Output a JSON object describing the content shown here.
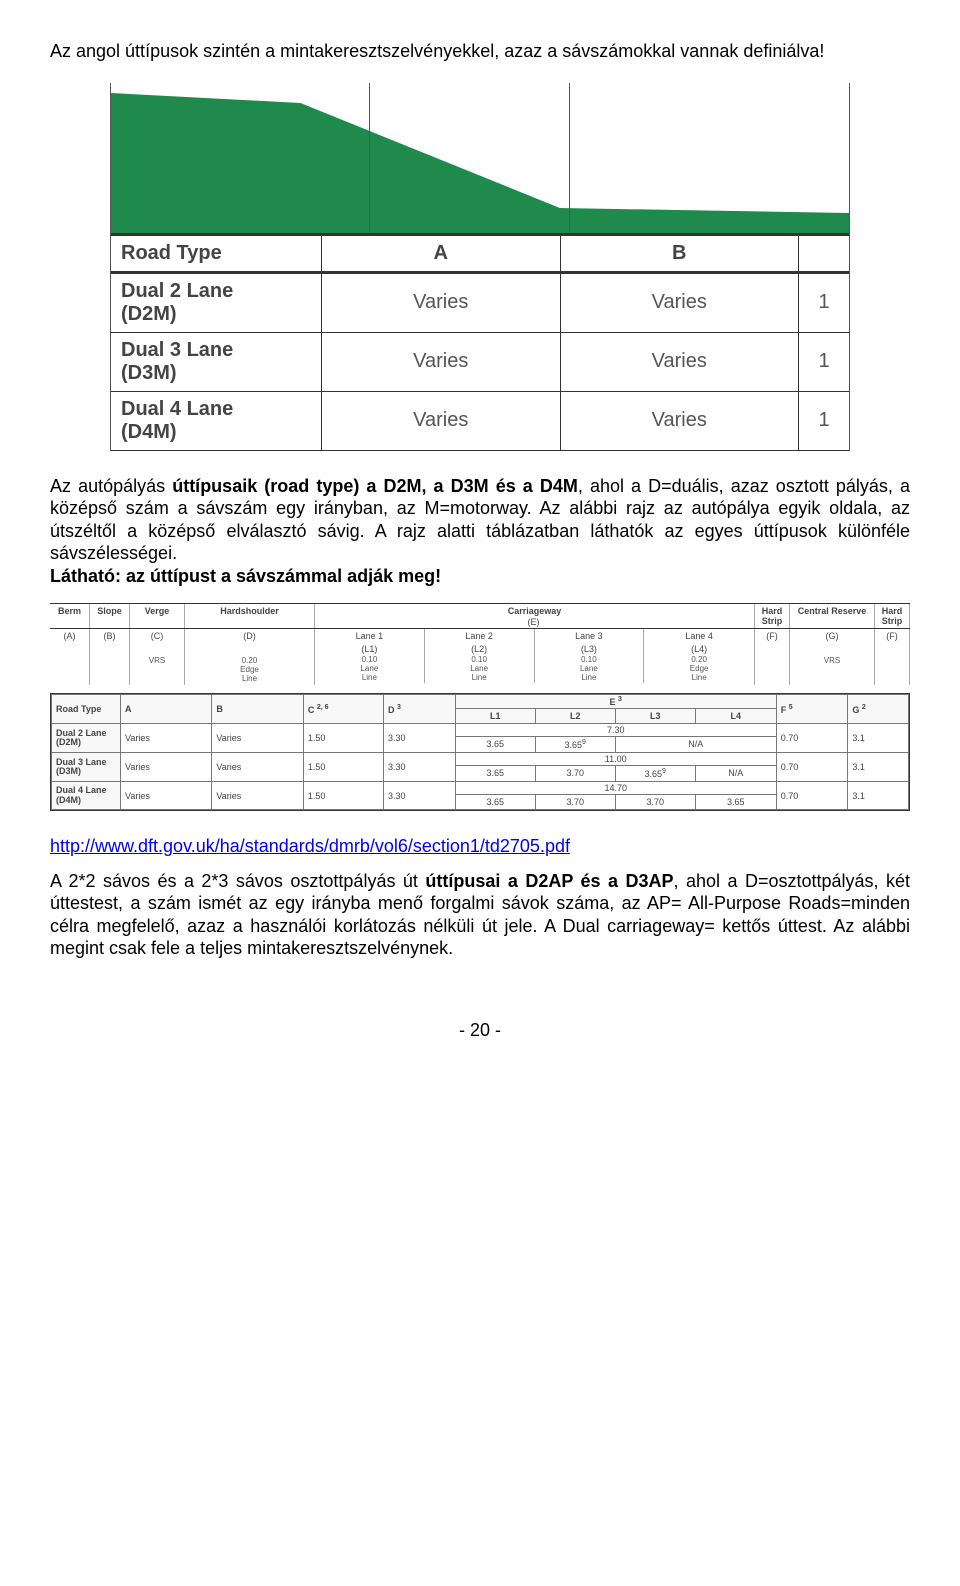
{
  "intro": "Az angol úttípusok szintén a mintakeresztszelvényekkel, azaz a sávszámokkal vannak definiálva!",
  "fig1": {
    "green_color": "#1f8a4c",
    "divider_positions_pct": [
      35,
      62
    ],
    "header": [
      "Road Type",
      "A",
      "B",
      ""
    ],
    "rows": [
      {
        "label": "Dual 2 Lane\n(D2M)",
        "a": "Varies",
        "b": "Varies",
        "c": "1"
      },
      {
        "label": "Dual 3 Lane\n(D3M)",
        "a": "Varies",
        "b": "Varies",
        "c": "1"
      },
      {
        "label": "Dual 4 Lane\n(D4M)",
        "a": "Varies",
        "b": "Varies",
        "c": "1"
      }
    ]
  },
  "para2_lead": "Az autópályás ",
  "para2_bold1": "úttípusaik (road type) a D2M, a D3M és a D4M",
  "para2_after1": ", ahol a D=duális, azaz osztott pályás, a középső szám a sávszám egy irányban, az M=motorway.",
  "para2_s2": "Az alábbi rajz az autópálya egyik oldala, az útszéltől a középső elválasztó sávig.",
  "para2_s3": "A rajz alatti táblázatban láthatók az egyes úttípusok különféle sávszélességei.",
  "para2_bold2": "Látható: az úttípust a sávszámmal adják meg!",
  "fig2": {
    "top_labels": [
      "Berm",
      "Slope",
      "Verge",
      "Hardshoulder",
      "Carriageway",
      "Hard\nStrip",
      "Central Reserve",
      "Hard\nStrip"
    ],
    "letters": [
      "(A)",
      "(B)",
      "(C)",
      "(D)",
      "(E)",
      "(F)",
      "(G)",
      "(F)"
    ],
    "lane_labels": [
      "Lane 1",
      "Lane 2",
      "Lane 3",
      "Lane 4"
    ],
    "lane_sub": [
      "(L1)",
      "(L2)",
      "(L3)",
      "(L4)"
    ],
    "edge_vals": {
      "vrs": "VRS",
      "edge_line_a": "0.20",
      "lane_line": "0.10",
      "edge_line_b": "0.20"
    },
    "sub_labels": {
      "edge": "Edge\nLine",
      "lane": "Lane\nLine"
    },
    "table_header": [
      "Road Type",
      "A",
      "B",
      "C",
      "D",
      "E",
      "F",
      "G"
    ],
    "e_subhead": [
      "L1",
      "L2",
      "L3",
      "L4"
    ],
    "c_sup": "2, 6",
    "d_sup": "3",
    "e_sup": "3",
    "f_sup": "5",
    "g_sup": "2",
    "rows": [
      {
        "label": "Dual 2 Lane\n(D2M)",
        "a": "Varies",
        "b": "Varies",
        "c": "1.50",
        "d": "3.30",
        "e_total": "7.30",
        "e": [
          "3.65",
          "3.65",
          "N/A",
          ""
        ],
        "na_span": 2,
        "f": "0.70",
        "g": "3.1",
        "e_sup_col": 2
      },
      {
        "label": "Dual 3 Lane\n(D3M)",
        "a": "Varies",
        "b": "Varies",
        "c": "1.50",
        "d": "3.30",
        "e_total": "11.00",
        "e": [
          "3.65",
          "3.70",
          "3.65",
          "N/A"
        ],
        "na_span": 1,
        "f": "0.70",
        "g": "3.1",
        "e_sup_col": 3
      },
      {
        "label": "Dual 4 Lane\n(D4M)",
        "a": "Varies",
        "b": "Varies",
        "c": "1.50",
        "d": "3.30",
        "e_total": "14.70",
        "e": [
          "3.65",
          "3.70",
          "3.70",
          "3.65"
        ],
        "na_span": 0,
        "f": "0.70",
        "g": "3.1",
        "e_sup_col": 0
      }
    ]
  },
  "link_text": "http://www.dft.gov.uk/ha/standards/dmrb/vol6/section1/td2705.pdf",
  "para3_a": "A 2*2 sávos és a 2*3 sávos osztottpályás út ",
  "para3_bold": "úttípusai a D2AP és a D3AP",
  "para3_b": ", ahol a D=osztottpályás, két úttestest, a szám ismét az egy irányba menő forgalmi sávok száma, az AP= All-Purpose Roads=minden célra megfelelő, azaz a használói korlátozás nélküli út jele. A Dual carriageway= kettős úttest.",
  "para3_c": "Az alábbi megint csak fele a teljes mintakeresztszelvénynek.",
  "footer": "- 20 -"
}
